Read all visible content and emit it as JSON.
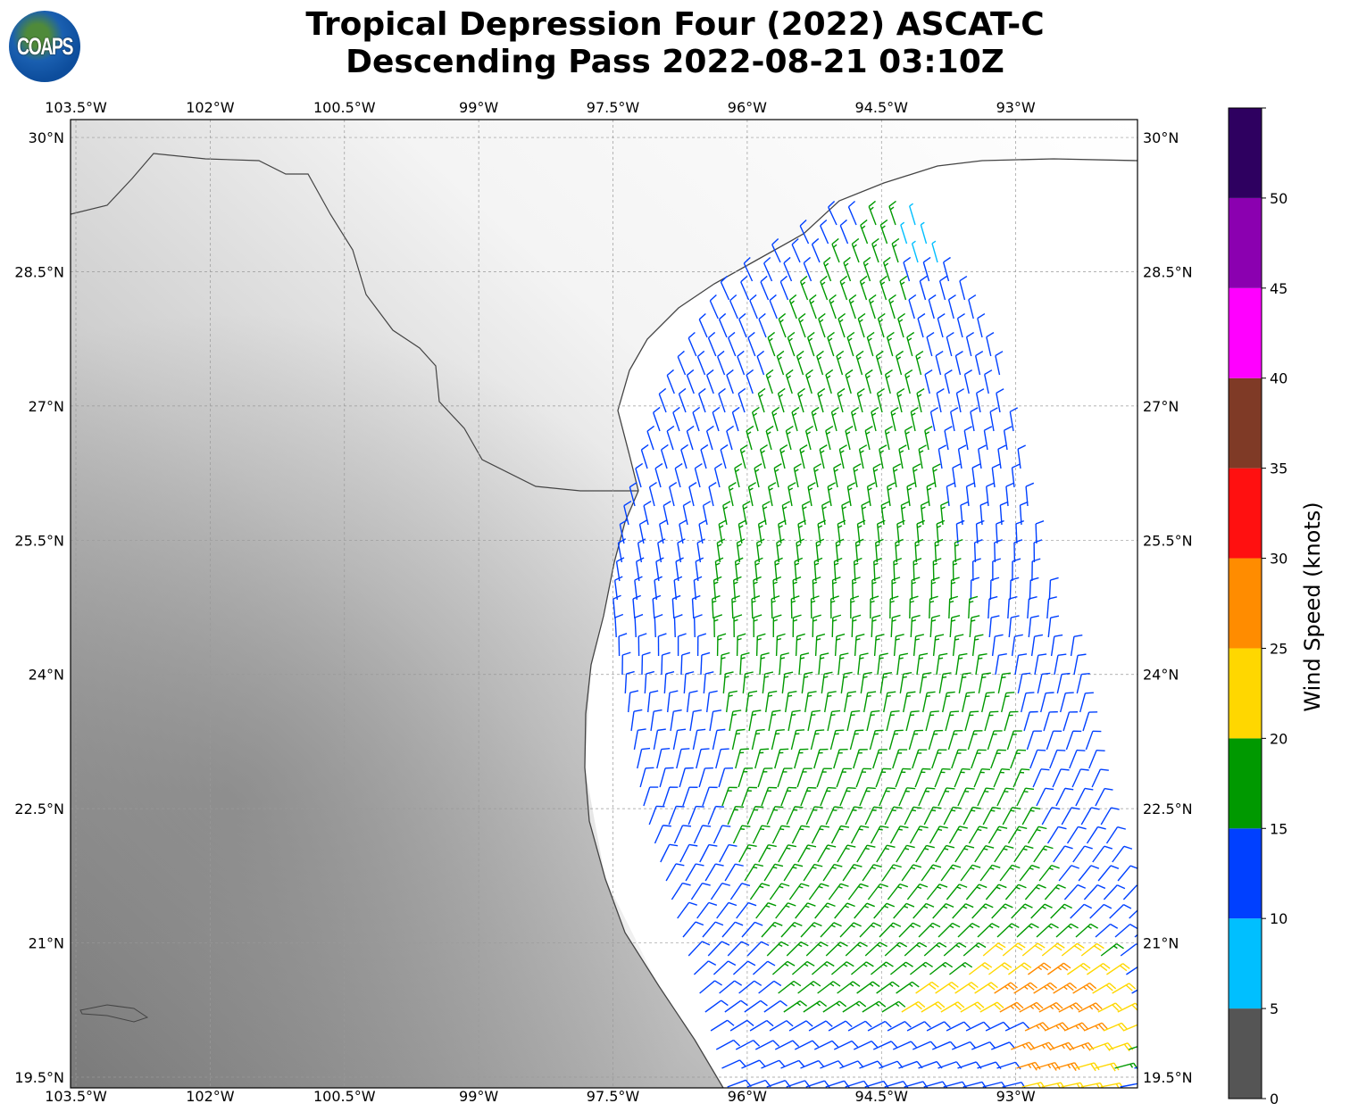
{
  "title": {
    "line1": "Tropical Depression Four (2022) ASCAT-C",
    "line2": "Descending Pass 2022-08-21 03:10Z"
  },
  "logo": {
    "text": "COAPS"
  },
  "map": {
    "extent": {
      "lon": [
        -103.56,
        -91.64
      ],
      "lat": [
        19.38,
        30.2
      ]
    },
    "lon_ticks": [
      {
        "value": -103.5,
        "label": "103.5°W"
      },
      {
        "value": -102,
        "label": "102°W"
      },
      {
        "value": -100.5,
        "label": "100.5°W"
      },
      {
        "value": -99,
        "label": "99°W"
      },
      {
        "value": -97.5,
        "label": "97.5°W"
      },
      {
        "value": -96,
        "label": "96°W"
      },
      {
        "value": -94.5,
        "label": "94.5°W"
      },
      {
        "value": -93,
        "label": "93°W"
      }
    ],
    "lat_ticks": [
      {
        "value": 30,
        "label": "30°N"
      },
      {
        "value": 28.5,
        "label": "28.5°N"
      },
      {
        "value": 27,
        "label": "27°N"
      },
      {
        "value": 25.5,
        "label": "25.5°N"
      },
      {
        "value": 24,
        "label": "24°N"
      },
      {
        "value": 22.5,
        "label": "22.5°N"
      },
      {
        "value": 21,
        "label": "21°N"
      },
      {
        "value": 19.5,
        "label": "19.5°N"
      }
    ],
    "gridlines": true,
    "background": "grayscale topography"
  },
  "colorbar": {
    "label": "Wind Speed (knots)",
    "bounds": [
      0,
      5,
      10,
      15,
      20,
      25,
      30,
      35,
      40,
      45,
      50,
      55
    ],
    "tick_labels": [
      "0",
      "5",
      "10",
      "15",
      "20",
      "25",
      "30",
      "35",
      "40",
      "45",
      "50"
    ],
    "colors": [
      "#555555",
      "#00bfff",
      "#0040ff",
      "#009900",
      "#ffd700",
      "#ff8c00",
      "#ff1010",
      "#7f3a26",
      "#ff00ff",
      "#8b00b0",
      "#2e0060"
    ]
  }
}
